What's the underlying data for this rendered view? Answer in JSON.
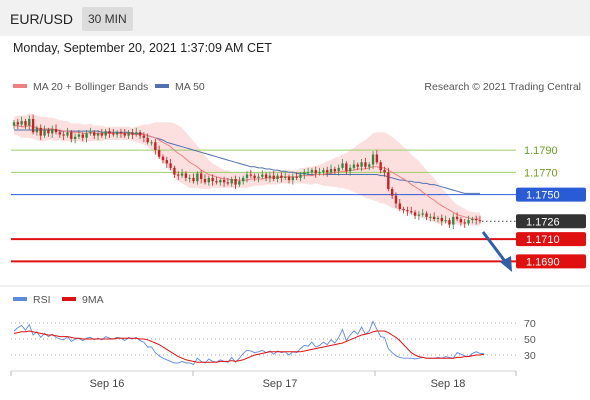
{
  "header": {
    "pair": "EUR/USD",
    "timeframe": "30 MIN"
  },
  "datetime": "Monday, September 20, 2021 1:37:09 AM CET",
  "legend": {
    "ma20": "MA 20 + Bollinger Bands",
    "ma50": "MA 50",
    "copyright": "Research © 2021 Trading Central"
  },
  "colors": {
    "ma20": "#f08080",
    "ma50": "#5070b0",
    "band": "#fbd7d7",
    "bull": "#2e8b3e",
    "bear": "#cc1f1f",
    "resistance": "#9bcf63",
    "pivot": "#2a5bd7",
    "support": "#e01010",
    "current": "#333333",
    "rsi": "#5b8be0",
    "rsi_ma": "#e01010",
    "arrow": "#2f5fa8"
  },
  "rsi_legend": {
    "rsi": "RSI",
    "ma": "9MA"
  },
  "chart_data": {
    "type": "line",
    "x_axis": {
      "ticks": [
        "Sep 16",
        "Sep 17",
        "Sep 18"
      ]
    },
    "ylim": [
      1.1675,
      1.1835
    ],
    "levels": [
      {
        "value": 1.179,
        "label": "1.1790",
        "kind": "resistance"
      },
      {
        "value": 1.177,
        "label": "1.1770",
        "kind": "resistance"
      },
      {
        "value": 1.175,
        "label": "1.1750",
        "kind": "pivot"
      },
      {
        "value": 1.1726,
        "label": "1.1726",
        "kind": "current"
      },
      {
        "value": 1.171,
        "label": "1.1710",
        "kind": "support"
      },
      {
        "value": 1.169,
        "label": "1.1690",
        "kind": "support"
      }
    ],
    "close": [
      1.1815,
      1.1813,
      1.1816,
      1.1812,
      1.1818,
      1.1806,
      1.181,
      1.1803,
      1.1808,
      1.1805,
      1.1809,
      1.1806,
      1.1804,
      1.1803,
      1.1806,
      1.18,
      1.1802,
      1.1804,
      1.1801,
      1.1805,
      1.1806,
      1.1803,
      1.1805,
      1.1803,
      1.1807,
      1.1805,
      1.1804,
      1.1806,
      1.1805,
      1.1803,
      1.1806,
      1.1804,
      1.1806,
      1.1803,
      1.1801,
      1.1797,
      1.1797,
      1.179,
      1.1784,
      1.1781,
      1.1778,
      1.1774,
      1.1768,
      1.1767,
      1.1769,
      1.1765,
      1.1765,
      1.1762,
      1.1769,
      1.1764,
      1.1761,
      1.1765,
      1.1762,
      1.1761,
      1.1763,
      1.1761,
      1.176,
      1.1764,
      1.1759,
      1.1762,
      1.1765,
      1.1768,
      1.1767,
      1.1765,
      1.1766,
      1.1768,
      1.1765,
      1.1767,
      1.1764,
      1.1767,
      1.1765,
      1.1766,
      1.1763,
      1.1766,
      1.1765,
      1.1768,
      1.177,
      1.177,
      1.1772,
      1.1769,
      1.177,
      1.1772,
      1.177,
      1.1773,
      1.1771,
      1.1774,
      1.1778,
      1.1771,
      1.1774,
      1.1777,
      1.1775,
      1.1779,
      1.1775,
      1.1777,
      1.1786,
      1.1779,
      1.1772,
      1.177,
      1.1755,
      1.1749,
      1.1742,
      1.1737,
      1.1736,
      1.1735,
      1.1734,
      1.1731,
      1.1732,
      1.1733,
      1.173,
      1.173,
      1.1728,
      1.1729,
      1.1726,
      1.1727,
      1.1723,
      1.173,
      1.1728,
      1.1725,
      1.1724,
      1.1727,
      1.1728,
      1.1727,
      1.1726
    ],
    "ma20": [
      1.1812,
      1.1812,
      1.1811,
      1.1811,
      1.1812,
      1.1811,
      1.181,
      1.1809,
      1.1809,
      1.1809,
      1.1809,
      1.1808,
      1.1808,
      1.1807,
      1.1807,
      1.1806,
      1.1806,
      1.1806,
      1.1805,
      1.1805,
      1.1806,
      1.1805,
      1.1805,
      1.1805,
      1.1805,
      1.1805,
      1.1805,
      1.1805,
      1.1805,
      1.1805,
      1.1805,
      1.1804,
      1.1804,
      1.1804,
      1.1804,
      1.1803,
      1.1802,
      1.1801,
      1.1799,
      1.1797,
      1.1795,
      1.1793,
      1.179,
      1.1787,
      1.1785,
      1.1782,
      1.1779,
      1.1777,
      1.1775,
      1.1772,
      1.177,
      1.1768,
      1.1767,
      1.1766,
      1.1765,
      1.1764,
      1.1764,
      1.1763,
      1.1763,
      1.1763,
      1.1763,
      1.1763,
      1.1764,
      1.1764,
      1.1764,
      1.1764,
      1.1765,
      1.1765,
      1.1765,
      1.1765,
      1.1766,
      1.1766,
      1.1766,
      1.1766,
      1.1766,
      1.1767,
      1.1767,
      1.1767,
      1.1767,
      1.1768,
      1.1768,
      1.1768,
      1.1769,
      1.1769,
      1.177,
      1.177,
      1.1771,
      1.1771,
      1.1772,
      1.1772,
      1.1773,
      1.1773,
      1.1773,
      1.1774,
      1.1775,
      1.1775,
      1.1774,
      1.1774,
      1.1772,
      1.177,
      1.1768,
      1.1766,
      1.1764,
      1.1762,
      1.1759,
      1.1757,
      1.1755,
      1.1752,
      1.175,
      1.1747,
      1.1745,
      1.1742,
      1.174,
      1.1738,
      1.1736,
      1.1734,
      1.1732,
      1.1731,
      1.173,
      1.1729,
      1.1728,
      1.1728,
      1.1728
    ],
    "ma50": [
      1.1808,
      1.1808,
      1.1808,
      1.1808,
      1.1808,
      1.1808,
      1.1808,
      1.1808,
      1.1808,
      1.1808,
      1.1808,
      1.1808,
      1.1807,
      1.1807,
      1.1807,
      1.1807,
      1.1807,
      1.1807,
      1.1807,
      1.1807,
      1.1807,
      1.1807,
      1.1807,
      1.1806,
      1.1806,
      1.1806,
      1.1806,
      1.1806,
      1.1806,
      1.1806,
      1.1806,
      1.1805,
      1.1805,
      1.1805,
      1.1804,
      1.1803,
      1.1802,
      1.1801,
      1.18,
      1.1799,
      1.1797,
      1.1796,
      1.1795,
      1.1794,
      1.1793,
      1.1792,
      1.1791,
      1.179,
      1.1789,
      1.1788,
      1.1787,
      1.1786,
      1.1785,
      1.1784,
      1.1783,
      1.1782,
      1.1781,
      1.178,
      1.1779,
      1.1778,
      1.1777,
      1.1776,
      1.1775,
      1.1775,
      1.1774,
      1.1774,
      1.1773,
      1.1773,
      1.1772,
      1.1772,
      1.1771,
      1.1771,
      1.177,
      1.177,
      1.1769,
      1.1769,
      1.1769,
      1.1768,
      1.1768,
      1.1768,
      1.1768,
      1.1768,
      1.1768,
      1.1768,
      1.1768,
      1.1768,
      1.1768,
      1.1768,
      1.1768,
      1.1768,
      1.1768,
      1.1768,
      1.1768,
      1.1768,
      1.1768,
      1.1768,
      1.1767,
      1.1767,
      1.1766,
      1.1765,
      1.1764,
      1.1763,
      1.1763,
      1.1762,
      1.1762,
      1.1761,
      1.1761,
      1.176,
      1.176,
      1.1759,
      1.1759,
      1.1758,
      1.1757,
      1.1756,
      1.1755,
      1.1754,
      1.1753,
      1.1752,
      1.1751,
      1.1751,
      1.1751,
      1.1751,
      1.1751
    ],
    "bb_width": [
      0.0008,
      0.0009,
      0.001,
      0.001,
      0.0011,
      0.0011,
      0.0011,
      0.0011,
      0.0011,
      0.001,
      0.001,
      0.001,
      0.0009,
      0.0009,
      0.0009,
      0.0008,
      0.0008,
      0.0008,
      0.0008,
      0.0008,
      0.0008,
      0.0007,
      0.0007,
      0.0007,
      0.0006,
      0.0006,
      0.0006,
      0.0006,
      0.0006,
      0.0006,
      0.0006,
      0.0006,
      0.0007,
      0.0008,
      0.0009,
      0.001,
      0.0012,
      0.0014,
      0.0016,
      0.0018,
      0.002,
      0.0022,
      0.0024,
      0.0025,
      0.0025,
      0.0024,
      0.0023,
      0.0021,
      0.0019,
      0.0017,
      0.0015,
      0.0013,
      0.0011,
      0.001,
      0.0009,
      0.0008,
      0.0008,
      0.0007,
      0.0007,
      0.0007,
      0.0007,
      0.0007,
      0.0007,
      0.0006,
      0.0006,
      0.0006,
      0.0006,
      0.0006,
      0.0006,
      0.0006,
      0.0006,
      0.0006,
      0.0006,
      0.0006,
      0.0006,
      0.0007,
      0.0007,
      0.0008,
      0.0008,
      0.0008,
      0.0009,
      0.001,
      0.0011,
      0.0012,
      0.0013,
      0.0014,
      0.0015,
      0.0016,
      0.0018,
      0.002,
      0.0022,
      0.0024,
      0.0026,
      0.0028,
      0.003,
      0.0031,
      0.0032,
      0.0032,
      0.0032,
      0.0032,
      0.0031,
      0.003,
      0.0029,
      0.0028,
      0.0027,
      0.0026,
      0.0025,
      0.0024,
      0.0022,
      0.0021,
      0.002,
      0.0018,
      0.0016,
      0.0014,
      0.0012,
      0.001,
      0.0009,
      0.0008,
      0.0007,
      0.0006,
      0.0006,
      0.0006,
      0.0006,
      0.0006
    ],
    "rsi": {
      "ylim": [
        15,
        85
      ],
      "levels": [
        70,
        50,
        30
      ],
      "rsi": [
        60,
        64,
        67,
        61,
        68,
        55,
        59,
        52,
        57,
        53,
        56,
        52,
        50,
        49,
        53,
        47,
        50,
        51,
        48,
        51,
        52,
        49,
        51,
        49,
        53,
        51,
        50,
        52,
        51,
        48,
        52,
        50,
        52,
        48,
        46,
        40,
        40,
        33,
        29,
        26,
        24,
        22,
        20,
        20,
        22,
        20,
        20,
        18,
        26,
        22,
        20,
        25,
        22,
        21,
        24,
        22,
        21,
        27,
        21,
        26,
        32,
        36,
        35,
        33,
        34,
        36,
        33,
        35,
        31,
        35,
        33,
        34,
        30,
        34,
        33,
        38,
        42,
        41,
        46,
        40,
        42,
        46,
        43,
        49,
        45,
        52,
        62,
        48,
        55,
        60,
        56,
        65,
        56,
        60,
        72,
        62,
        53,
        52,
        38,
        33,
        29,
        27,
        26,
        26,
        26,
        25,
        26,
        27,
        26,
        26,
        26,
        27,
        26,
        28,
        27,
        26,
        33,
        31,
        29,
        28,
        32,
        34,
        32,
        32
      ],
      "ma9": [
        57,
        58,
        59,
        59,
        60,
        59,
        58,
        57,
        56,
        55,
        55,
        54,
        53,
        53,
        53,
        52,
        51,
        51,
        50,
        50,
        50,
        50,
        50,
        50,
        50,
        50,
        50,
        51,
        51,
        51,
        51,
        51,
        51,
        50,
        50,
        49,
        47,
        45,
        43,
        40,
        37,
        34,
        31,
        28,
        26,
        24,
        23,
        22,
        21,
        21,
        21,
        21,
        21,
        21,
        22,
        22,
        22,
        23,
        22,
        23,
        24,
        26,
        28,
        30,
        31,
        32,
        33,
        34,
        34,
        34,
        34,
        34,
        34,
        34,
        34,
        34,
        35,
        36,
        37,
        38,
        39,
        40,
        41,
        42,
        43,
        44,
        45,
        47,
        49,
        51,
        53,
        55,
        56,
        57,
        59,
        60,
        60,
        60,
        58,
        55,
        52,
        48,
        43,
        38,
        33,
        30,
        28,
        27,
        26,
        26,
        26,
        26,
        26,
        26,
        26,
        26,
        27,
        27,
        28,
        28,
        29,
        30,
        30,
        31
      ]
    }
  }
}
